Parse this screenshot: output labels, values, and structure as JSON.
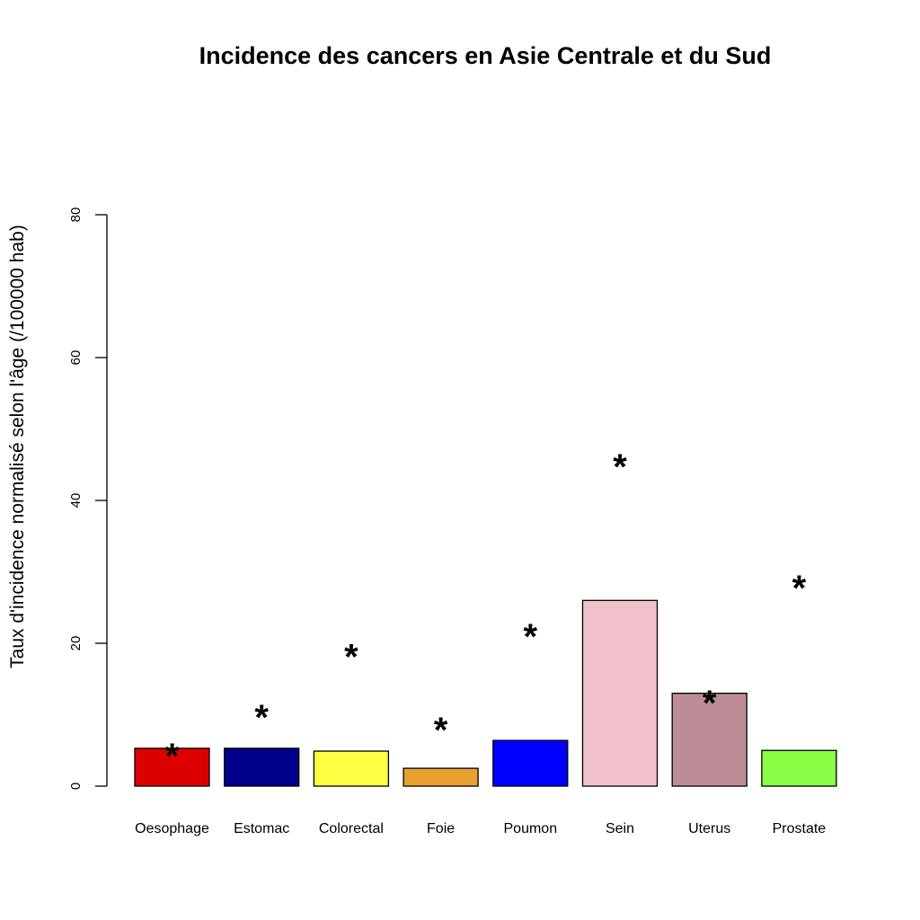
{
  "chart_data": {
    "type": "bar",
    "title": "Incidence des cancers en Asie Centrale et du Sud",
    "xlabel": "",
    "ylabel": "Taux d'incidence normalisé selon l'âge (/100000 hab)",
    "ylim": [
      0,
      80
    ],
    "yticks": [
      0,
      20,
      40,
      60,
      80
    ],
    "grid": false,
    "categories": [
      "Oesophage",
      "Estomac",
      "Colorectal",
      "Foie",
      "Poumon",
      "Sein",
      "Uterus",
      "Prostate"
    ],
    "values": [
      5.3,
      5.3,
      4.9,
      2.5,
      6.4,
      26.0,
      13.0,
      5.0
    ],
    "colors": [
      "#dd0000",
      "#00008b",
      "#ffff44",
      "#e8a030",
      "#0000ff",
      "#f0c0cb",
      "#be8c96",
      "#88ff44"
    ],
    "markers": {
      "symbol": "*",
      "values": [
        5.3,
        10.7,
        19.2,
        8.9,
        22.0,
        45.8,
        12.7,
        28.8
      ]
    }
  }
}
